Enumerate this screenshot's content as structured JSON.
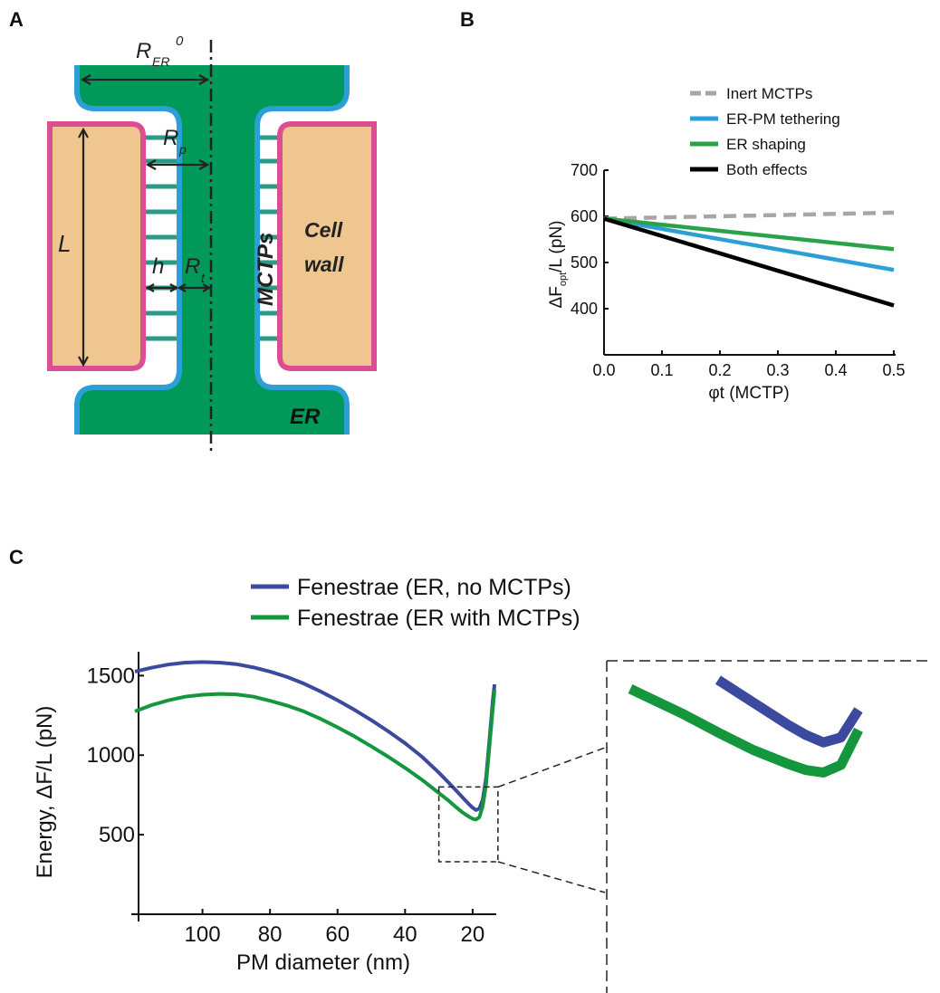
{
  "panels": {
    "a": "A",
    "b": "B",
    "c": "C"
  },
  "diagram_a": {
    "labels": {
      "r_er_main": "R",
      "r_er_sub": "ER",
      "r_er_sup": "0",
      "rp_main": "R",
      "rp_sub": "p",
      "l": "L",
      "h": "h",
      "rt_main": "R",
      "rt_sub": "t",
      "mctps": "MCTPs",
      "cell_wall_1": "Cell",
      "cell_wall_2": "wall",
      "er": "ER"
    },
    "colors": {
      "er": "#00995a",
      "er_membrane": "#2b9fd6",
      "plasma_membrane": "#dc4e93",
      "cell_wall": "#efc68f",
      "tether": "#2a9a86"
    }
  },
  "chart_data": [
    {
      "panel": "B",
      "type": "line",
      "xlabel": "φt (MCTP)",
      "ylabel_main": "ΔF",
      "ylabel_sub": "opt",
      "ylabel_rest": "/L (pN)",
      "x": [
        0.0,
        0.5
      ],
      "xlim": [
        0.0,
        0.5
      ],
      "ylim": [
        300,
        700
      ],
      "xticks": [
        "0.0",
        "0.1",
        "0.2",
        "0.3",
        "0.4",
        "0.5"
      ],
      "yticks": [
        "400",
        "500",
        "600",
        "700"
      ],
      "legend_position": "top-right",
      "series": [
        {
          "name": "Inert MCTPs",
          "values": [
            595,
            608
          ],
          "color": "#a6a6a6",
          "dashed": true
        },
        {
          "name": "ER-PM tethering",
          "values": [
            595,
            484
          ],
          "color": "#2b9fd6"
        },
        {
          "name": "ER shaping",
          "values": [
            595,
            529
          ],
          "color": "#2aa24a"
        },
        {
          "name": "Both effects",
          "values": [
            595,
            407
          ],
          "color": "#000000"
        }
      ]
    },
    {
      "panel": "C",
      "type": "line",
      "xlabel": "PM diameter (nm)",
      "ylabel": "Energy, ΔF/L (pN)",
      "xlim": [
        120,
        13
      ],
      "ylim": [
        0,
        1650
      ],
      "xticks": [
        "100",
        "80",
        "60",
        "40",
        "20"
      ],
      "yticks": [
        "500",
        "1000",
        "1500"
      ],
      "legend_position": "top",
      "series": [
        {
          "name": "Fenestrae (ER, no MCTPs)",
          "color": "#3b4a9e",
          "x": [
            120,
            115,
            110,
            105,
            100,
            95,
            90,
            85,
            80,
            75,
            70,
            65,
            60,
            55,
            50,
            45,
            40,
            35,
            30,
            27,
            25,
            23,
            21,
            20,
            19,
            18,
            17,
            16,
            15,
            14,
            13.5
          ],
          "values": [
            1525,
            1550,
            1570,
            1582,
            1585,
            1582,
            1572,
            1552,
            1525,
            1492,
            1450,
            1400,
            1345,
            1285,
            1220,
            1150,
            1075,
            990,
            890,
            825,
            780,
            735,
            690,
            670,
            655,
            665,
            720,
            860,
            1100,
            1350,
            1445
          ]
        },
        {
          "name": "Fenestrae (ER with MCTPs)",
          "color": "#14963c",
          "x": [
            120,
            115,
            110,
            105,
            100,
            95,
            90,
            85,
            80,
            75,
            70,
            65,
            60,
            55,
            50,
            45,
            40,
            35,
            30,
            27,
            25,
            23,
            21,
            20,
            19,
            18,
            17,
            16,
            15,
            14,
            13.5
          ],
          "values": [
            1275,
            1315,
            1345,
            1368,
            1380,
            1385,
            1382,
            1368,
            1342,
            1312,
            1275,
            1228,
            1175,
            1118,
            1055,
            990,
            920,
            845,
            762,
            712,
            675,
            640,
            612,
            600,
            595,
            610,
            680,
            820,
            1060,
            1300,
            1410
          ]
        }
      ]
    }
  ]
}
